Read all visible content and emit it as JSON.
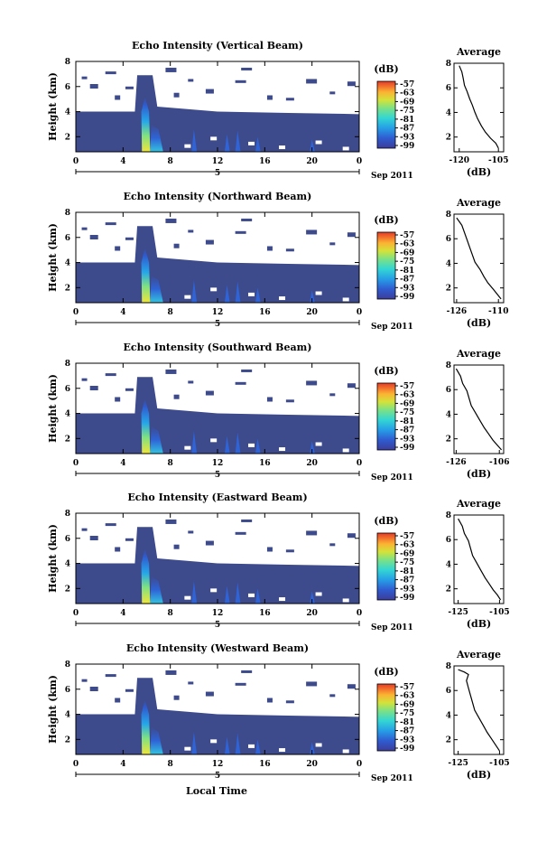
{
  "figure": {
    "x_label": "Local Time",
    "date_label": "Sep 2011",
    "day_label": "5",
    "unit_label": "(dB)",
    "average_title": "Average",
    "average_xlabel": "(dB)",
    "height_label": "Height (km)"
  },
  "chart_data": [
    {
      "type": "heatmap",
      "title": "Echo Intensity (Vertical Beam)",
      "ylabel": "Height (km)",
      "xlabel": "Local Time",
      "x_ticks": [
        "0",
        "4",
        "8",
        "12",
        "16",
        "20",
        "0"
      ],
      "y_ticks": [
        "2",
        "4",
        "6",
        "8"
      ],
      "xlim": [
        0,
        24
      ],
      "ylim": [
        0.8,
        8
      ],
      "colorbar": {
        "label": "(dB)",
        "ticks": [
          "-57",
          "-63",
          "-69",
          "-75",
          "-81",
          "-87",
          "-93",
          "-99"
        ]
      },
      "average_profile": {
        "title": "Average",
        "xlabel": "(dB)",
        "x_ticks": [
          "-120",
          "-105"
        ],
        "xlim": [
          -122,
          -103
        ],
        "points": [
          [
            -120,
            7.8
          ],
          [
            -119,
            7.3
          ],
          [
            -118.5,
            6.8
          ],
          [
            -118,
            6.2
          ],
          [
            -117,
            5.7
          ],
          [
            -116,
            5.1
          ],
          [
            -115,
            4.6
          ],
          [
            -114,
            4.0
          ],
          [
            -113,
            3.5
          ],
          [
            -111.5,
            2.9
          ],
          [
            -110,
            2.4
          ],
          [
            -108,
            1.9
          ],
          [
            -106,
            1.5
          ],
          [
            -105,
            1.1
          ]
        ]
      }
    },
    {
      "type": "heatmap",
      "title": "Echo Intensity (Northward Beam)",
      "ylabel": "Height (km)",
      "xlabel": "Local Time",
      "x_ticks": [
        "0",
        "4",
        "8",
        "12",
        "16",
        "20",
        "0"
      ],
      "y_ticks": [
        "2",
        "4",
        "6",
        "8"
      ],
      "xlim": [
        0,
        24
      ],
      "ylim": [
        0.8,
        8
      ],
      "colorbar": {
        "label": "(dB)",
        "ticks": [
          "-57",
          "-63",
          "-69",
          "-75",
          "-81",
          "-87",
          "-93",
          "-99"
        ]
      },
      "average_profile": {
        "title": "Average",
        "xlabel": "(dB)",
        "x_ticks": [
          "-126",
          "-110"
        ],
        "xlim": [
          -127,
          -108
        ],
        "points": [
          [
            -126,
            7.7
          ],
          [
            -124,
            7.1
          ],
          [
            -123,
            6.5
          ],
          [
            -122,
            5.9
          ],
          [
            -121,
            5.3
          ],
          [
            -120,
            4.7
          ],
          [
            -119,
            4.1
          ],
          [
            -117,
            3.5
          ],
          [
            -115.5,
            2.9
          ],
          [
            -114,
            2.4
          ],
          [
            -112,
            1.9
          ],
          [
            -110.5,
            1.5
          ],
          [
            -109,
            1.1
          ]
        ]
      }
    },
    {
      "type": "heatmap",
      "title": "Echo Intensity (Southward Beam)",
      "ylabel": "Height (km)",
      "xlabel": "Local Time",
      "x_ticks": [
        "0",
        "4",
        "8",
        "12",
        "16",
        "20",
        "0"
      ],
      "y_ticks": [
        "2",
        "4",
        "6",
        "8"
      ],
      "xlim": [
        0,
        24
      ],
      "ylim": [
        0.8,
        8
      ],
      "colorbar": {
        "label": "(dB)",
        "ticks": [
          "-57",
          "-63",
          "-69",
          "-75",
          "-81",
          "-87",
          "-93",
          "-99"
        ]
      },
      "average_profile": {
        "title": "Average",
        "xlabel": "(dB)",
        "x_ticks": [
          "-126",
          "-106"
        ],
        "xlim": [
          -127,
          -104
        ],
        "points": [
          [
            -126,
            7.7
          ],
          [
            -124,
            7.1
          ],
          [
            -123,
            6.5
          ],
          [
            -121,
            5.9
          ],
          [
            -120,
            5.3
          ],
          [
            -119,
            4.7
          ],
          [
            -117,
            4.1
          ],
          [
            -115,
            3.5
          ],
          [
            -113,
            2.9
          ],
          [
            -111,
            2.4
          ],
          [
            -109,
            1.9
          ],
          [
            -107,
            1.5
          ],
          [
            -105,
            1.1
          ]
        ]
      }
    },
    {
      "type": "heatmap",
      "title": "Echo Intensity (Eastward Beam)",
      "ylabel": "Height (km)",
      "xlabel": "Local Time",
      "x_ticks": [
        "0",
        "4",
        "8",
        "12",
        "16",
        "20",
        "0"
      ],
      "y_ticks": [
        "2",
        "4",
        "6",
        "8"
      ],
      "xlim": [
        0,
        24
      ],
      "ylim": [
        0.8,
        8
      ],
      "colorbar": {
        "label": "(dB)",
        "ticks": [
          "-57",
          "-63",
          "-69",
          "-75",
          "-81",
          "-87",
          "-93",
          "-99"
        ]
      },
      "average_profile": {
        "title": "Average",
        "xlabel": "(dB)",
        "x_ticks": [
          "-125",
          "-105"
        ],
        "xlim": [
          -127,
          -103
        ],
        "points": [
          [
            -125,
            7.7
          ],
          [
            -123,
            7.1
          ],
          [
            -122,
            6.5
          ],
          [
            -120,
            5.9
          ],
          [
            -119,
            5.3
          ],
          [
            -118,
            4.7
          ],
          [
            -116,
            4.1
          ],
          [
            -114,
            3.5
          ],
          [
            -112,
            2.9
          ],
          [
            -110,
            2.4
          ],
          [
            -108,
            1.9
          ],
          [
            -106,
            1.5
          ],
          [
            -104.5,
            1.1
          ]
        ]
      }
    },
    {
      "type": "heatmap",
      "title": "Echo Intensity (Westward Beam)",
      "ylabel": "Height (km)",
      "xlabel": "Local Time",
      "x_ticks": [
        "0",
        "4",
        "8",
        "12",
        "16",
        "20",
        "0"
      ],
      "y_ticks": [
        "2",
        "4",
        "6",
        "8"
      ],
      "xlim": [
        0,
        24
      ],
      "ylim": [
        0.8,
        8
      ],
      "colorbar": {
        "label": "(dB)",
        "ticks": [
          "-57",
          "-63",
          "-69",
          "-75",
          "-81",
          "-87",
          "-93",
          "-99"
        ]
      },
      "average_profile": {
        "title": "Average",
        "xlabel": "(dB)",
        "x_ticks": [
          "-125",
          "-105"
        ],
        "xlim": [
          -127,
          -103
        ],
        "points": [
          [
            -125,
            7.7
          ],
          [
            -122,
            7.5
          ],
          [
            -120,
            7.3
          ],
          [
            -121,
            6.8
          ],
          [
            -120,
            6.2
          ],
          [
            -119,
            5.6
          ],
          [
            -118,
            5.0
          ],
          [
            -117,
            4.4
          ],
          [
            -115,
            3.8
          ],
          [
            -113,
            3.2
          ],
          [
            -111,
            2.6
          ],
          [
            -109,
            2.1
          ],
          [
            -107,
            1.6
          ],
          [
            -105,
            1.1
          ]
        ]
      }
    }
  ],
  "colors": {
    "background_echo": "#3d4a8c",
    "colorbar": [
      "#3d3d9b",
      "#2f63d6",
      "#26a7e8",
      "#33dcd0",
      "#7be384",
      "#d4e23a",
      "#fbb232",
      "#f26d2c",
      "#e23c2a"
    ]
  }
}
